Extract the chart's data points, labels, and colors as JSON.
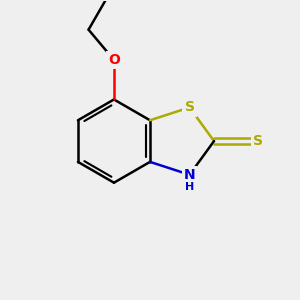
{
  "bg_color": "#efefef",
  "bond_color": "#000000",
  "bond_width": 1.8,
  "S_color": "#aaaa00",
  "O_color": "#ff0000",
  "N_color": "#0000cc",
  "font_size_atom": 10,
  "font_size_H": 8,
  "xlim": [
    0,
    10
  ],
  "ylim": [
    0,
    10
  ],
  "figsize": [
    3.0,
    3.0
  ],
  "dpi": 100
}
